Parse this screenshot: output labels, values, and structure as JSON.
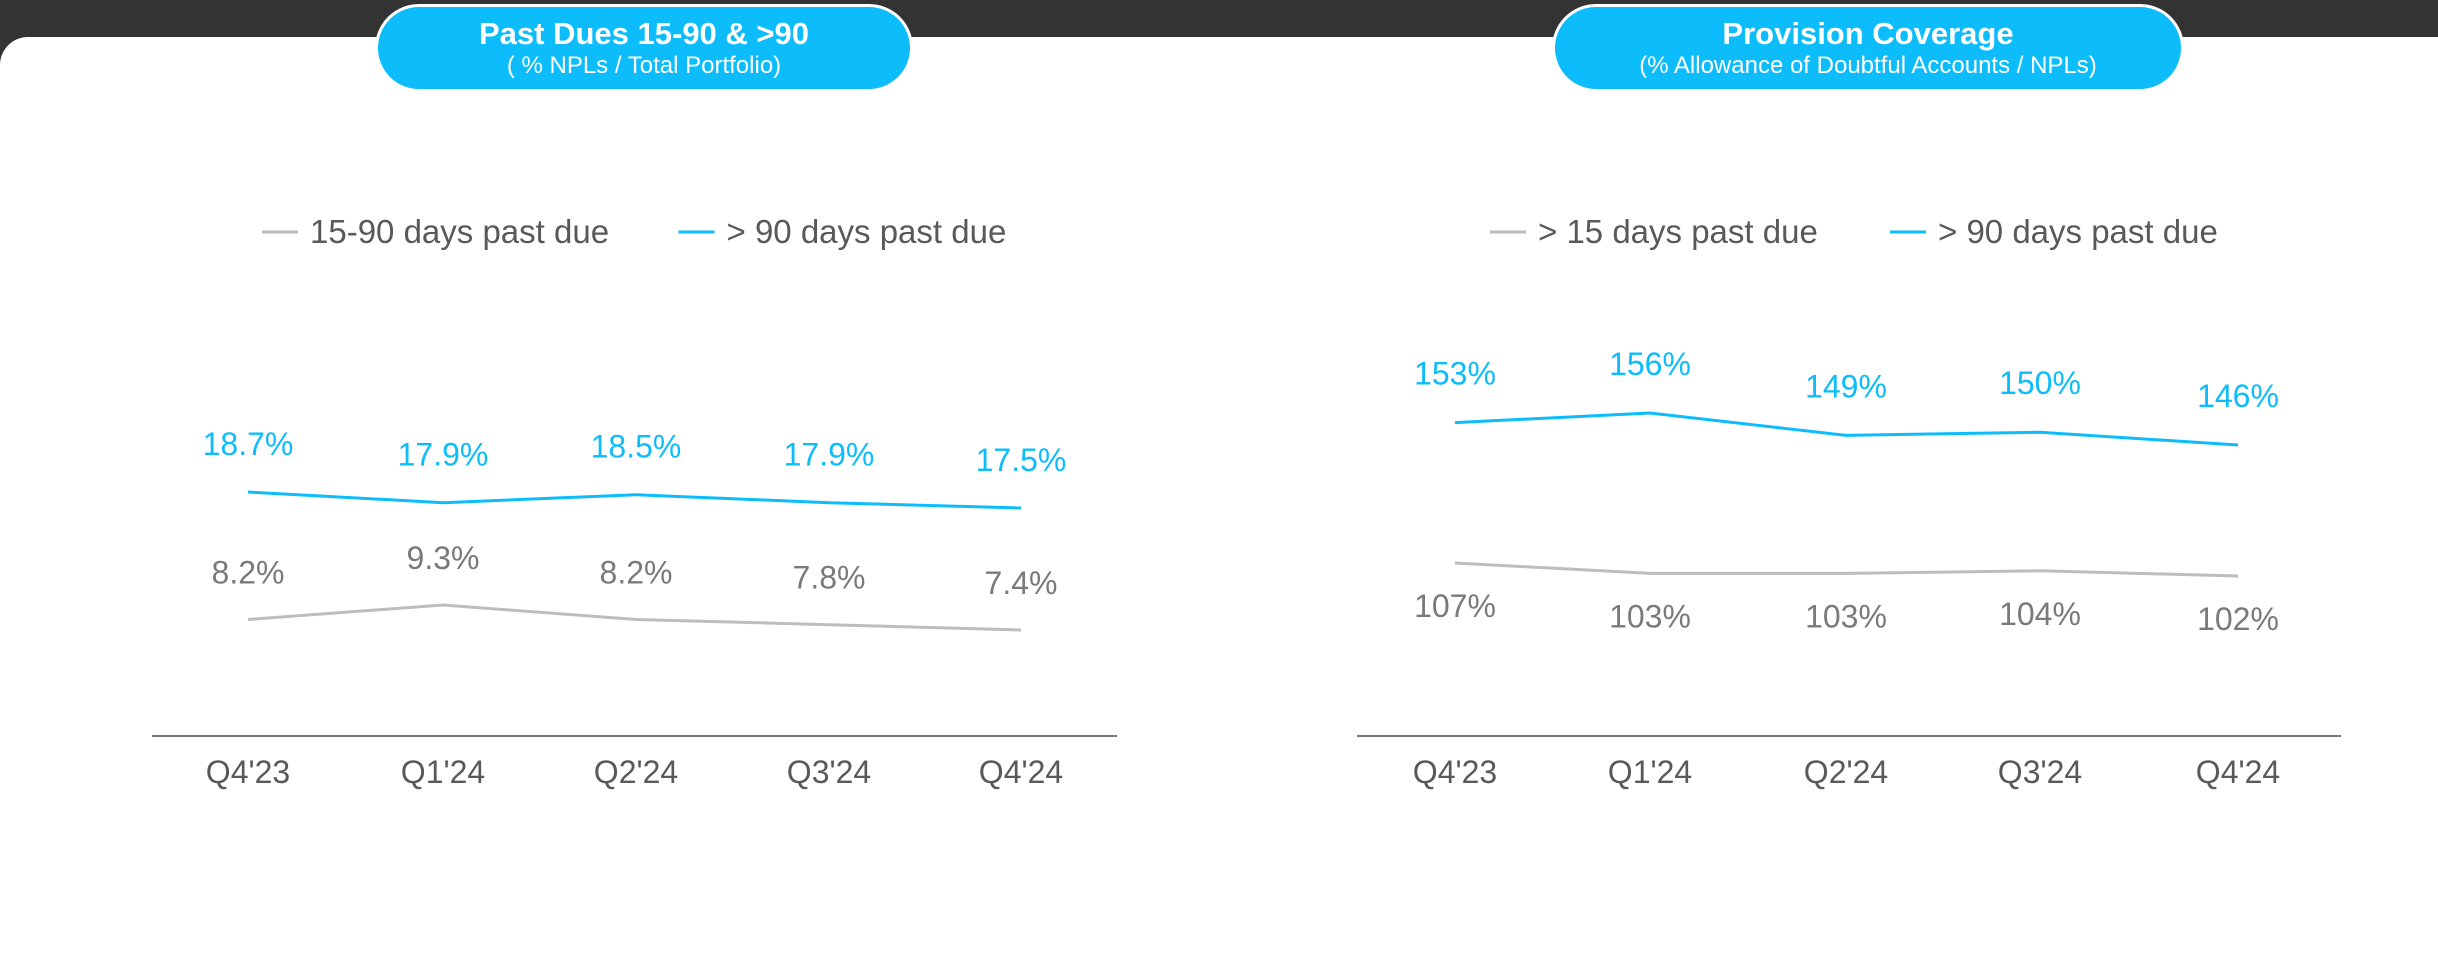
{
  "colors": {
    "accent": "#0dbcfb",
    "gray_line": "#bdbdbd",
    "gray_text": "#7a7a7a",
    "axis": "#777777",
    "dark_text": "#595959"
  },
  "chart_data": [
    {
      "type": "line",
      "title": "Past Dues 15-90 & >90",
      "subtitle": "( % NPLs / Total Portfolio)",
      "categories": [
        "Q4'23",
        "Q1'24",
        "Q2'24",
        "Q3'24",
        "Q4'24"
      ],
      "legend_position": "top-center",
      "grid": false,
      "series": [
        {
          "name": "15-90 days past due",
          "color": "#bdbdbd",
          "label_color": "#7a7a7a",
          "values": [
            8.2,
            9.3,
            8.2,
            7.8,
            7.4
          ],
          "labels": [
            "8.2%",
            "9.3%",
            "8.2%",
            "7.8%",
            "7.4%"
          ],
          "label_side": "above"
        },
        {
          "name": "> 90 days past due",
          "color": "#0dbcfb",
          "label_color": "#0dbcfb",
          "values": [
            18.7,
            17.9,
            18.5,
            17.9,
            17.5
          ],
          "labels": [
            "18.7%",
            "17.9%",
            "18.5%",
            "17.9%",
            "17.5%"
          ],
          "label_side": "above"
        }
      ]
    },
    {
      "type": "line",
      "title": "Provision Coverage",
      "subtitle": "(% Allowance of Doubtful Accounts / NPLs)",
      "categories": [
        "Q4'23",
        "Q1'24",
        "Q2'24",
        "Q3'24",
        "Q4'24"
      ],
      "legend_position": "top-center",
      "grid": false,
      "series": [
        {
          "name": "> 15 days past due",
          "color": "#bdbdbd",
          "label_color": "#7a7a7a",
          "values": [
            107,
            103,
            103,
            104,
            102
          ],
          "labels": [
            "107%",
            "103%",
            "103%",
            "104%",
            "102%"
          ],
          "label_side": "below"
        },
        {
          "name": "> 90 days past due",
          "color": "#0dbcfb",
          "label_color": "#0dbcfb",
          "values": [
            153,
            156,
            149,
            150,
            146
          ],
          "labels": [
            "153%",
            "156%",
            "149%",
            "150%",
            "146%"
          ],
          "label_side": "above"
        }
      ]
    }
  ]
}
